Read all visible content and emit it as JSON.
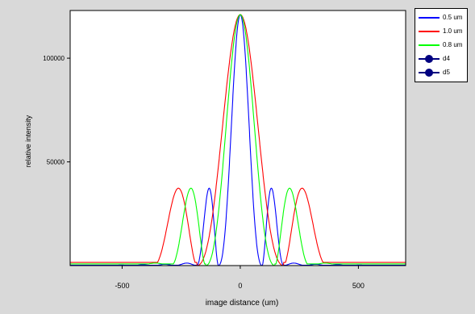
{
  "chart_data": {
    "type": "line",
    "title": "",
    "xlabel": "image distance (um)",
    "ylabel": "relative intensity",
    "xlim": [
      -720,
      700
    ],
    "ylim": [
      0,
      123000
    ],
    "xticks": [
      -500,
      0,
      500
    ],
    "yticks": [
      50000,
      100000
    ],
    "xtick_labels": [
      "-500",
      "0",
      "500"
    ],
    "ytick_labels": [
      "50000",
      "100000"
    ],
    "grid": false,
    "legend_position": "outside-right-top",
    "background": "#ffffff",
    "series": [
      {
        "name": "0.5 um",
        "color": "#0000ff",
        "peak": 121000,
        "zero": 92,
        "side_peak": 37300,
        "side_pos": 170,
        "floor": 200,
        "style": "line"
      },
      {
        "name": "1.0 um",
        "color": "#ff0000",
        "peak": 121000,
        "zero": 183,
        "side_peak": 37300,
        "side_pos": 278,
        "floor": 1500,
        "style": "line"
      },
      {
        "name": "0.8 um",
        "color": "#00ff00",
        "peak": 121000,
        "zero": 146,
        "side_peak": 37300,
        "side_pos": 222,
        "floor": 800,
        "style": "line"
      },
      {
        "name": "d4",
        "color": "#000080",
        "style": "marker"
      },
      {
        "name": "d5",
        "color": "#000080",
        "style": "marker"
      }
    ]
  }
}
